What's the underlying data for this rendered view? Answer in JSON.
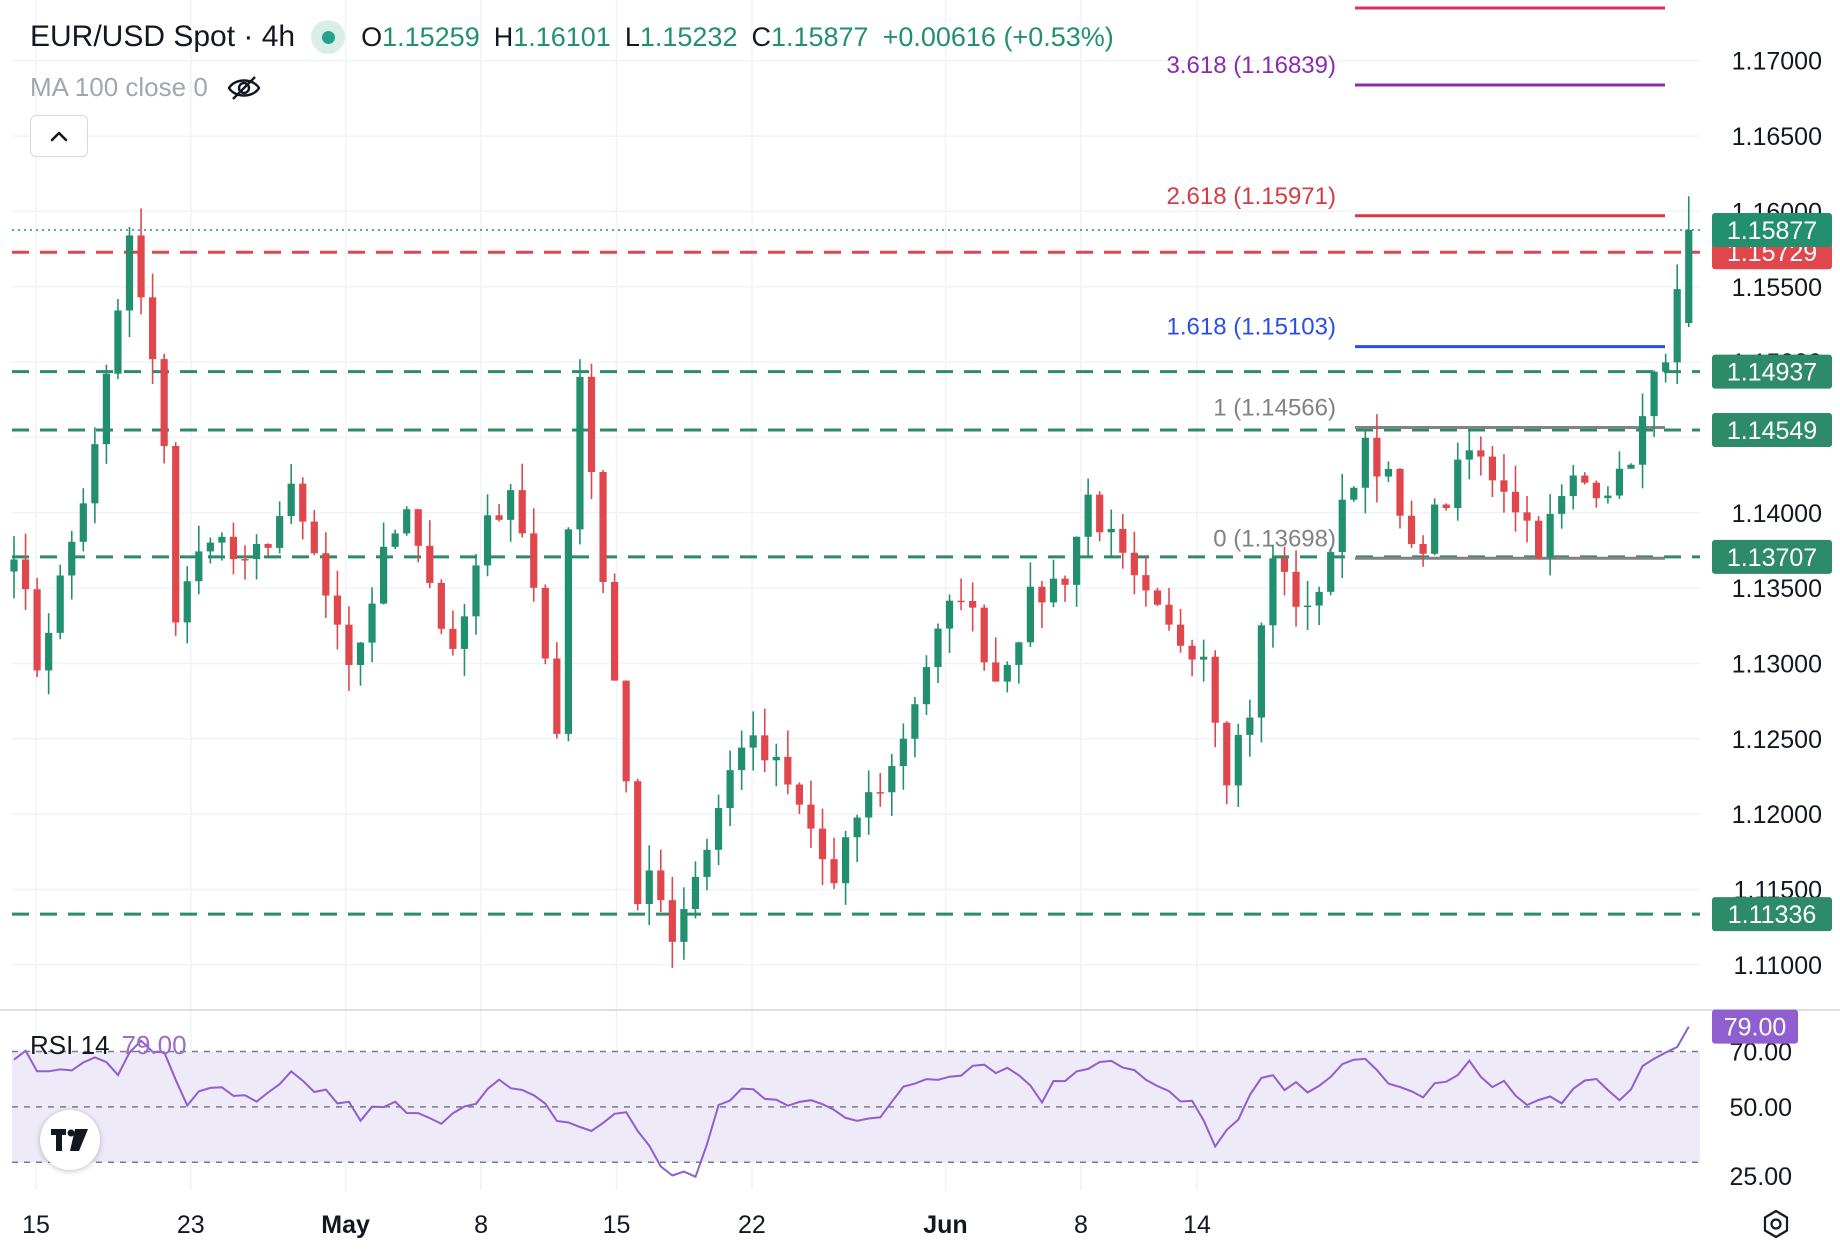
{
  "header": {
    "symbol": "EUR/USD Spot · 4h",
    "open_label": "O",
    "open": "1.15259",
    "high_label": "H",
    "high": "1.16101",
    "low_label": "L",
    "low": "1.15232",
    "close_label": "C",
    "close": "1.15877",
    "change": "+0.00616 (+0.53%)"
  },
  "indicator_ma": {
    "label": "MA 100 close 0"
  },
  "indicator_rsi": {
    "label": "RSI 14",
    "value": "79.00"
  },
  "colors": {
    "up": "#22906f",
    "down": "#e0474d",
    "support": "#2e8b6a",
    "resistance": "#e0474d",
    "fib_blue": "#2b4fe3",
    "fib_purple": "#8a2dad",
    "fib_red": "#d83a44",
    "fib_gray": "#808285",
    "rsi_line": "#8f5fcf",
    "rsi_band": "#efeaf8",
    "top_line": "#d6336c"
  },
  "chart_data": [
    {
      "type": "candlestick",
      "title": "EUR/USD Spot · 4h",
      "ylim": [
        1.107,
        1.1735
      ],
      "y_ticks": [
        1.11,
        1.115,
        1.12,
        1.125,
        1.13,
        1.135,
        1.14,
        1.145,
        1.15,
        1.155,
        1.16,
        1.165,
        1.17
      ],
      "y_tick_labels": [
        "1.11000",
        "1.11500",
        "1.12000",
        "1.12500",
        "1.13000",
        "1.13500",
        "1.14000",
        "1.14500",
        "1.15000",
        "1.15500",
        "1.16000",
        "1.16500",
        "1.17000"
      ],
      "x_labels": [
        {
          "label": "15",
          "day": 0
        },
        {
          "label": "23",
          "day": 8
        },
        {
          "label": "May",
          "day": 16
        },
        {
          "label": "8",
          "day": 23
        },
        {
          "label": "15",
          "day": 30
        },
        {
          "label": "22",
          "day": 37
        },
        {
          "label": "Jun",
          "day": 47
        },
        {
          "label": "8",
          "day": 54
        },
        {
          "label": "14",
          "day": 60
        }
      ],
      "anchors": [
        [
          0,
          1.138
        ],
        [
          2,
          1.13
        ],
        [
          5,
          1.138
        ],
        [
          7,
          1.144
        ],
        [
          10,
          1.158
        ],
        [
          11,
          1.154
        ],
        [
          13,
          1.145
        ],
        [
          14,
          1.133
        ],
        [
          17,
          1.139
        ],
        [
          20,
          1.136
        ],
        [
          24,
          1.141
        ],
        [
          26,
          1.137
        ],
        [
          29,
          1.129
        ],
        [
          32,
          1.137
        ],
        [
          34,
          1.141
        ],
        [
          38,
          1.13
        ],
        [
          41,
          1.139
        ],
        [
          43,
          1.142
        ],
        [
          45,
          1.135
        ],
        [
          47,
          1.126
        ],
        [
          49,
          1.15
        ],
        [
          50,
          1.143
        ],
        [
          54,
          1.114
        ],
        [
          55,
          1.117
        ],
        [
          57,
          1.112
        ],
        [
          60,
          1.118
        ],
        [
          63,
          1.125
        ],
        [
          66,
          1.123
        ],
        [
          69,
          1.119
        ],
        [
          71,
          1.115
        ],
        [
          73,
          1.12
        ],
        [
          76,
          1.123
        ],
        [
          79,
          1.13
        ],
        [
          82,
          1.135
        ],
        [
          85,
          1.129
        ],
        [
          88,
          1.134
        ],
        [
          91,
          1.136
        ],
        [
          93,
          1.141
        ],
        [
          95,
          1.138
        ],
        [
          97,
          1.135
        ],
        [
          100,
          1.132
        ],
        [
          103,
          1.131
        ],
        [
          105,
          1.123
        ],
        [
          107,
          1.127
        ],
        [
          109,
          1.137
        ],
        [
          112,
          1.133
        ],
        [
          115,
          1.14
        ],
        [
          117,
          1.145
        ],
        [
          119,
          1.142
        ],
        [
          121,
          1.137
        ],
        [
          124,
          1.141
        ],
        [
          126,
          1.144
        ],
        [
          129,
          1.142
        ],
        [
          132,
          1.138
        ],
        [
          135,
          1.142
        ],
        [
          139,
          1.142
        ],
        [
          141,
          1.146
        ],
        [
          143,
          1.151
        ],
        [
          144,
          1.154
        ],
        [
          145,
          1.15877
        ]
      ],
      "last_candle": {
        "open": 1.15259,
        "high": 1.16101,
        "low": 1.15232,
        "close": 1.15877
      },
      "fib_levels": [
        {
          "label": "3.618 (1.16839)",
          "value": 1.16839,
          "color": "#8a2dad"
        },
        {
          "label": "2.618 (1.15971)",
          "value": 1.15971,
          "color": "#d83a44"
        },
        {
          "label": "1.618 (1.15103)",
          "value": 1.15103,
          "color": "#2b4fe3"
        },
        {
          "label": "1 (1.14566)",
          "value": 1.14566,
          "color": "#808285"
        },
        {
          "label": "0 (1.13698)",
          "value": 1.13698,
          "color": "#808285"
        }
      ],
      "horizontal_levels": [
        {
          "label": "1.15729",
          "value": 1.15729,
          "kind": "resistance"
        },
        {
          "label": "1.14937",
          "value": 1.14937,
          "kind": "support"
        },
        {
          "label": "1.14549",
          "value": 1.14549,
          "kind": "support"
        },
        {
          "label": "1.13707",
          "value": 1.13707,
          "kind": "support"
        },
        {
          "label": "1.11336",
          "value": 1.11336,
          "kind": "support"
        }
      ],
      "current_price": {
        "label": "1.15877",
        "value": 1.15877
      }
    },
    {
      "type": "line",
      "title": "RSI 14",
      "ylim": [
        20,
        85
      ],
      "reference_levels": [
        30,
        50,
        70
      ],
      "y_tick_labels": [
        "70.00",
        "50.00",
        "25.00"
      ],
      "current_value": {
        "label": "79.00",
        "value": 79.0
      },
      "anchors": [
        [
          0,
          70
        ],
        [
          3,
          62
        ],
        [
          6,
          68
        ],
        [
          9,
          63
        ],
        [
          11,
          72
        ],
        [
          13,
          70
        ],
        [
          15,
          52
        ],
        [
          18,
          56
        ],
        [
          21,
          50
        ],
        [
          24,
          60
        ],
        [
          27,
          55
        ],
        [
          30,
          47
        ],
        [
          33,
          50
        ],
        [
          36,
          44
        ],
        [
          39,
          52
        ],
        [
          42,
          58
        ],
        [
          45,
          52
        ],
        [
          48,
          44
        ],
        [
          50,
          42
        ],
        [
          53,
          48
        ],
        [
          56,
          30
        ],
        [
          57,
          24
        ],
        [
          59,
          26
        ],
        [
          61,
          50
        ],
        [
          64,
          56
        ],
        [
          67,
          50
        ],
        [
          70,
          53
        ],
        [
          73,
          46
        ],
        [
          75,
          44
        ],
        [
          77,
          58
        ],
        [
          80,
          62
        ],
        [
          84,
          66
        ],
        [
          87,
          62
        ],
        [
          89,
          54
        ],
        [
          92,
          64
        ],
        [
          94,
          68
        ],
        [
          96,
          66
        ],
        [
          99,
          56
        ],
        [
          102,
          50
        ],
        [
          104,
          38
        ],
        [
          106,
          44
        ],
        [
          108,
          60
        ],
        [
          111,
          56
        ],
        [
          114,
          62
        ],
        [
          117,
          66
        ],
        [
          119,
          60
        ],
        [
          121,
          54
        ],
        [
          124,
          58
        ],
        [
          126,
          64
        ],
        [
          129,
          58
        ],
        [
          131,
          50
        ],
        [
          134,
          54
        ],
        [
          137,
          58
        ],
        [
          139,
          52
        ],
        [
          141,
          64
        ],
        [
          143,
          70
        ],
        [
          145,
          79
        ]
      ]
    }
  ]
}
